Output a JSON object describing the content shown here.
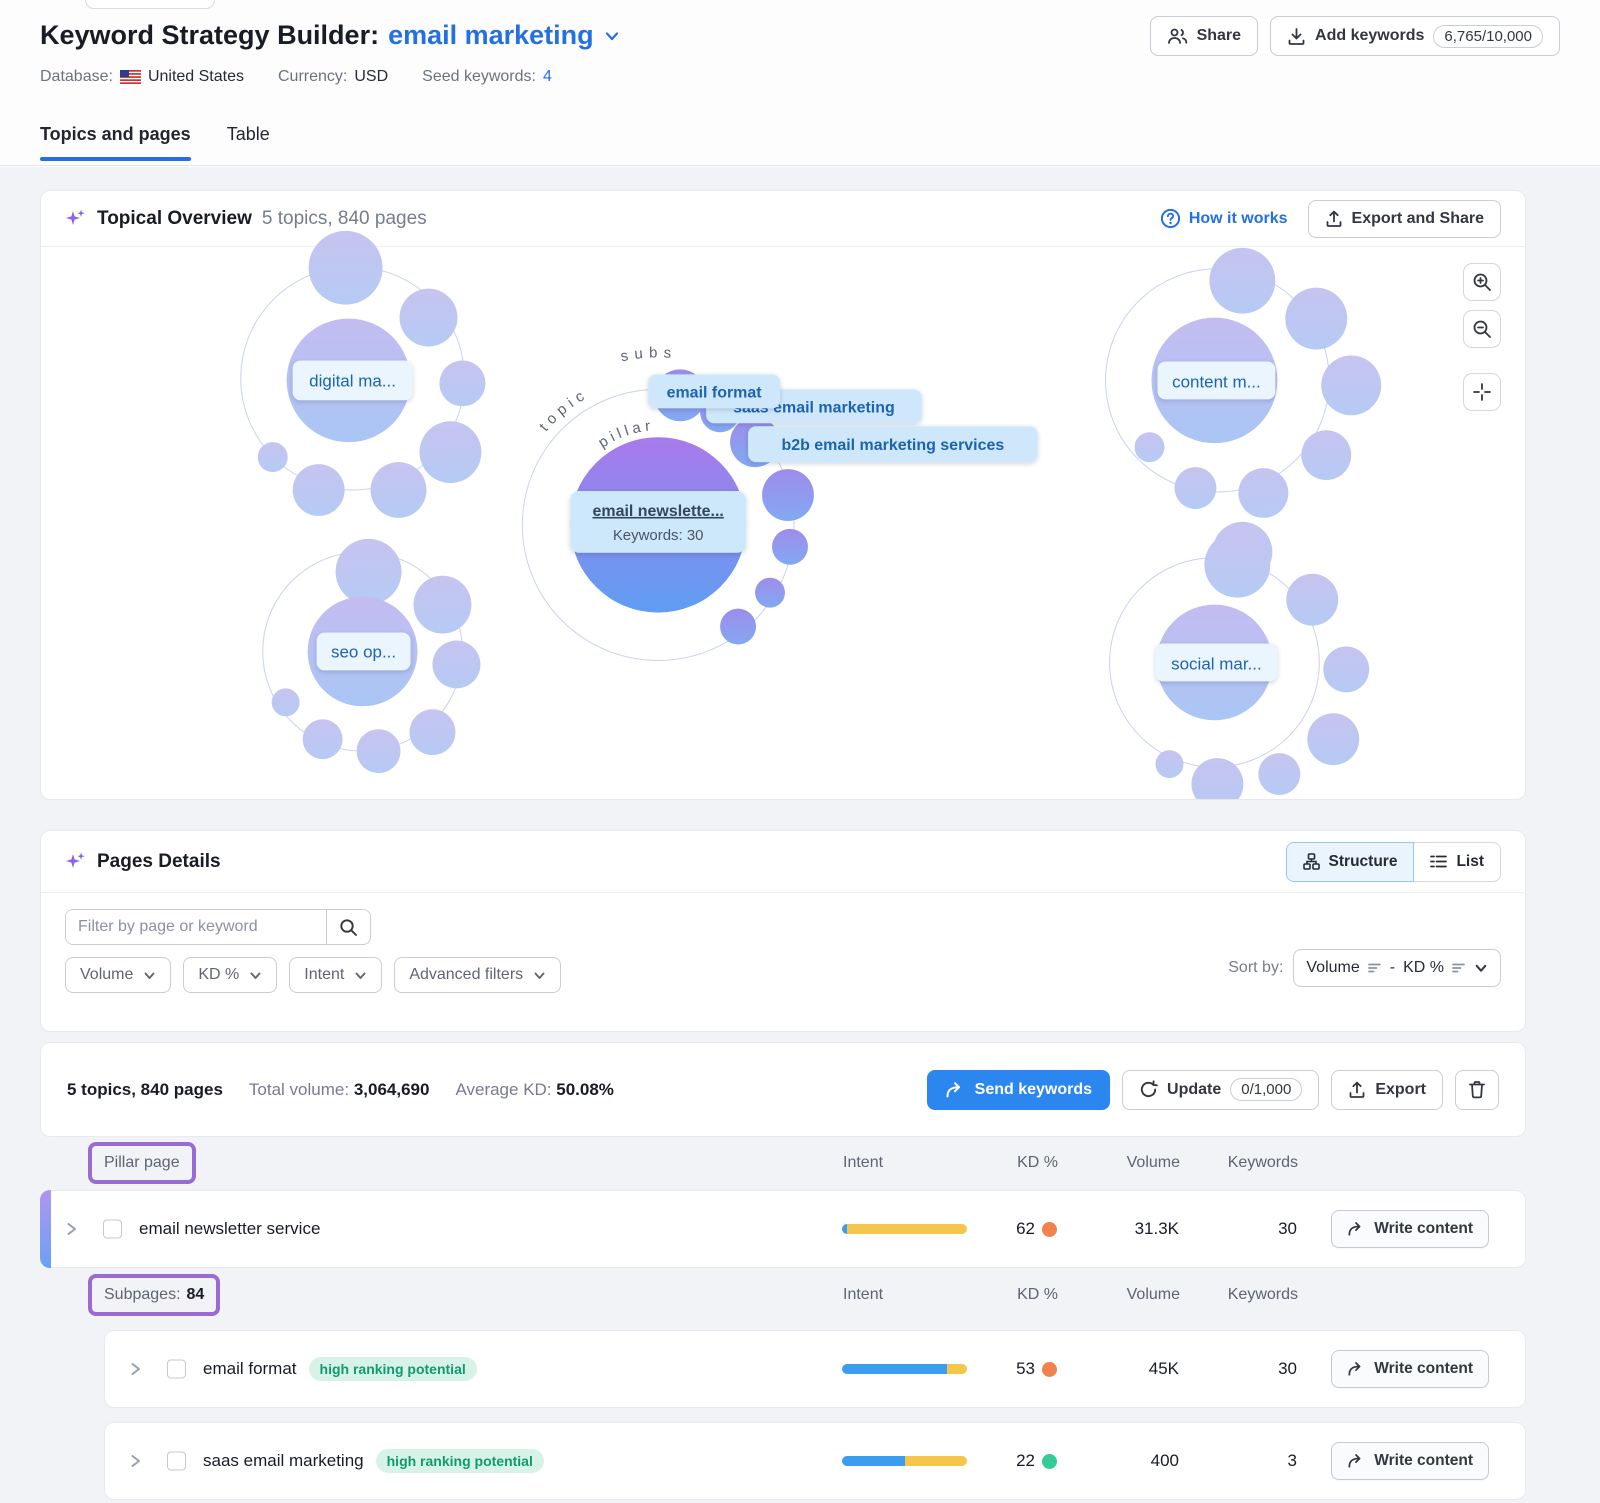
{
  "header": {
    "title": "Keyword Strategy Builder:",
    "project": "email marketing",
    "share_label": "Share",
    "add_keywords_label": "Add keywords",
    "keywords_counter": "6,765/10,000",
    "database_label": "Database:",
    "database_value": "United States",
    "currency_label": "Currency:",
    "currency_value": "USD",
    "seed_label": "Seed keywords:",
    "seed_value": "4",
    "tab_topics": "Topics and pages",
    "tab_table": "Table"
  },
  "topical_overview": {
    "title": "Topical Overview",
    "subtitle": "5 topics, 840 pages",
    "how_it_works": "How it works",
    "export_share": "Export and Share",
    "ring_subs": "subs",
    "ring_topic": "topic",
    "ring_pillar": "pillar",
    "cluster_digital": "digital ma...",
    "cluster_seo": "seo op...",
    "cluster_content": "content m...",
    "cluster_social": "social mar...",
    "chip_email_format": "email format",
    "chip_saas": "saas email marketing",
    "chip_b2b": "b2b email marketing services",
    "pillar_tooltip_title": "email newslette...",
    "pillar_tooltip_sub": "Keywords: 30"
  },
  "pages_details": {
    "title": "Pages Details",
    "structure_label": "Structure",
    "list_label": "List",
    "filter_placeholder": "Filter by page or keyword",
    "filter_volume": "Volume",
    "filter_kd": "KD %",
    "filter_intent": "Intent",
    "filter_advanced": "Advanced filters",
    "sort_by_label": "Sort by:",
    "sort_value_1": "Volume",
    "sort_sep": "-",
    "sort_value_2": "KD %"
  },
  "summary": {
    "topics_pages": "5 topics, 840 pages",
    "total_volume_label": "Total volume:",
    "total_volume": "3,064,690",
    "avg_kd_label": "Average KD:",
    "avg_kd": "50.08%",
    "send_keywords": "Send keywords",
    "update": "Update",
    "update_counter": "0/1,000",
    "export": "Export"
  },
  "table": {
    "pillar_header": "Pillar page",
    "subpages_label": "Subpages:",
    "subpages_count": "84",
    "col_intent": "Intent",
    "col_kd": "KD %",
    "col_volume": "Volume",
    "col_keywords": "Keywords",
    "write_content": "Write content",
    "rows": [
      {
        "name": "email newsletter service",
        "badge": null,
        "kd": "62",
        "kd_dot": "#f0834c",
        "volume": "31.3K",
        "keywords": "30",
        "intent_blue_pct": 4,
        "intent_yellow_pct": 96
      },
      {
        "name": "email format",
        "badge": "high ranking potential",
        "kd": "53",
        "kd_dot": "#f0834c",
        "volume": "45K",
        "keywords": "30",
        "intent_blue_pct": 84,
        "intent_yellow_pct": 16
      },
      {
        "name": "saas email marketing",
        "badge": "high ranking potential",
        "kd": "22",
        "kd_dot": "#35cb96",
        "volume": "400",
        "keywords": "3",
        "intent_blue_pct": 50,
        "intent_yellow_pct": 50
      }
    ]
  },
  "colors": {
    "accent_blue": "#2470e0",
    "primary_button": "#2c86f0",
    "highlight_purple": "#9b6bd4",
    "intent_blue": "#3b9df0",
    "intent_yellow": "#f6c54b",
    "kd_hard": "#f0834c",
    "kd_easy": "#35cb96",
    "badge_green_bg": "#d7f3e8",
    "badge_green_text": "#12996f"
  }
}
